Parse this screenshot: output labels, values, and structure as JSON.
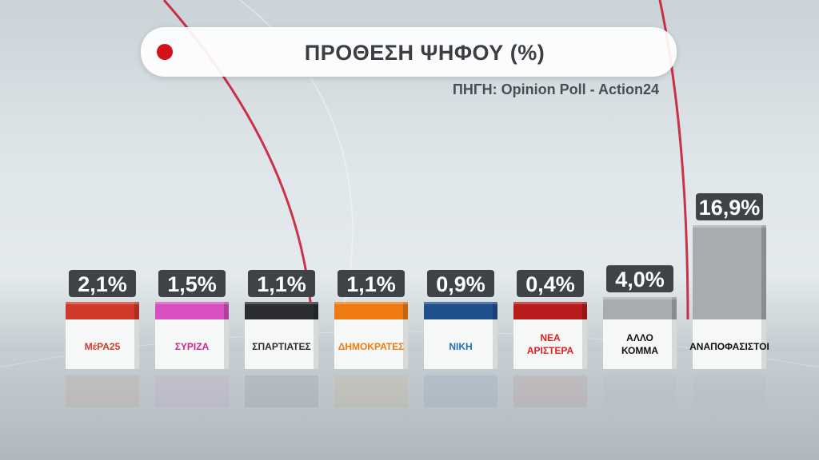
{
  "header": {
    "title": "ΠΡΟΘΕΣΗ ΨΗΦΟΥ (%)",
    "source": "ΠΗΓΗ: Opinion Poll - Action24"
  },
  "chart_data": {
    "type": "bar",
    "categories": [
      "ΜέΡΑ25",
      "ΣΥΡΙΖΑ",
      "ΣΠΑΡΤΙΑΤΕΣ",
      "ΔΗΜΟΚΡΑΤΕΣ",
      "ΝΙΚΗ",
      "ΝΕΑ ΑΡΙΣΤΕΡΑ",
      "ΑΛΛΟ ΚΟΜΜΑ",
      "ΑΝΑΠΟΦΑΣΙΣΤΟΙ"
    ],
    "values": [
      2.1,
      1.5,
      1.1,
      1.1,
      0.9,
      0.4,
      4.0,
      16.9
    ],
    "value_labels": [
      "2,1%",
      "1,5%",
      "1,1%",
      "1,1%",
      "0,9%",
      "0,4%",
      "4,0%",
      "16,9%"
    ],
    "colors": [
      "#d13a2a",
      "#d84fc0",
      "#2b2d31",
      "#f07a12",
      "#1f4f8c",
      "#b81c1c",
      "#a7acb1",
      "#a7acb1"
    ],
    "label_colors": [
      "#d13a2a",
      "#c7288f",
      "#2b2d31",
      "#f07a12",
      "#1f6fb8",
      "#e0201f",
      "#111111",
      "#111111"
    ],
    "title": "ΠΡΟΘΕΣΗ ΨΗΦΟΥ (%)",
    "ylim": [
      0,
      17
    ],
    "grid": false,
    "legend": "none"
  }
}
